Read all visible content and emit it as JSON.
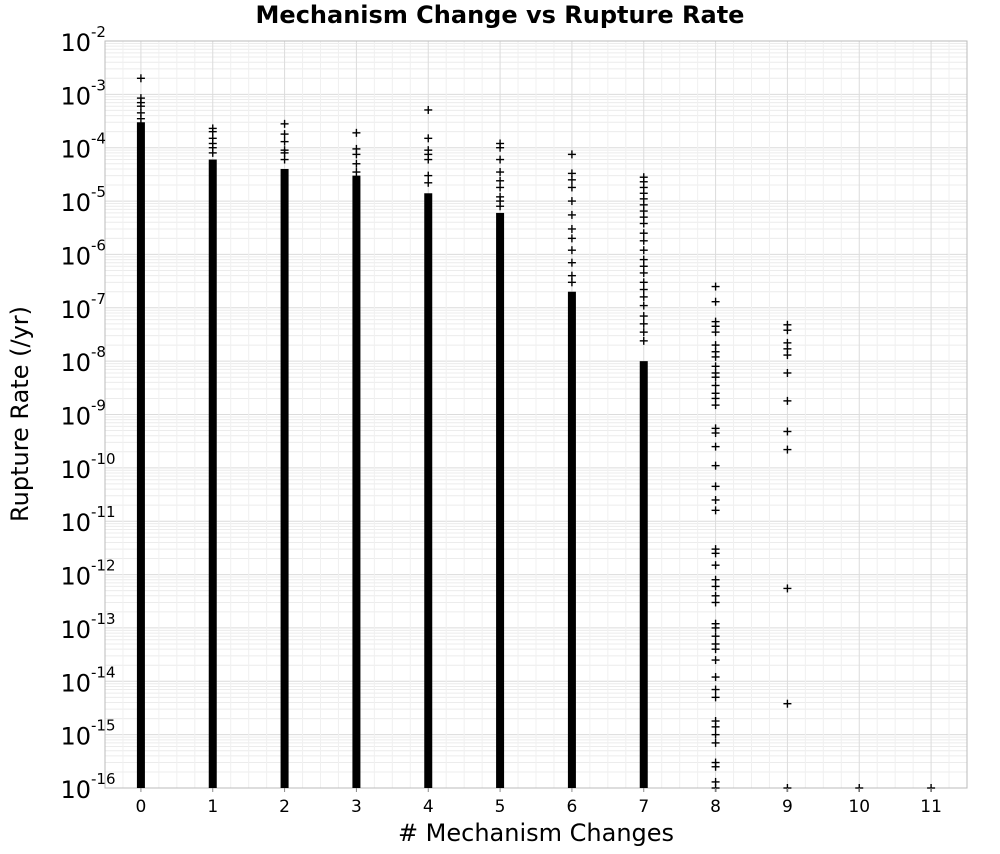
{
  "chart_data": {
    "type": "scatter",
    "title": "Mechanism Change vs Rupture Rate",
    "xlabel": "# Mechanism Changes",
    "ylabel": "Rupture Rate (/yr)",
    "x_ticks": [
      0,
      1,
      2,
      3,
      4,
      5,
      6,
      7,
      8,
      9,
      10,
      11
    ],
    "xlim": [
      -0.5,
      11.5
    ],
    "y_scale": "log",
    "ylim": [
      1e-16,
      0.01
    ],
    "y_tick_exponents": [
      -2,
      -3,
      -4,
      -5,
      -6,
      -7,
      -8,
      -9,
      -10,
      -11,
      -12,
      -13,
      -14,
      -15,
      -16
    ],
    "y_tick_base": "10",
    "grid": true,
    "marker": "+",
    "marker_color": "#000000",
    "columns": [
      {
        "x": 0,
        "dense_range": [
          1e-16,
          0.0003
        ],
        "points": [
          0.002,
          0.00085,
          0.0007,
          0.0006,
          0.00045,
          0.00035
        ]
      },
      {
        "x": 1,
        "dense_range": [
          1e-16,
          6e-05
        ],
        "points": [
          0.00023,
          0.0002,
          0.00015,
          0.00012,
          0.0001,
          8e-05
        ]
      },
      {
        "x": 2,
        "dense_range": [
          1e-16,
          4e-05
        ],
        "points": [
          0.00028,
          0.00018,
          0.00013,
          9e-05,
          8e-05,
          6e-05
        ]
      },
      {
        "x": 3,
        "dense_range": [
          1e-16,
          3e-05
        ],
        "points": [
          0.00019,
          9.5e-05,
          7.5e-05,
          5e-05,
          3.5e-05
        ]
      },
      {
        "x": 4,
        "dense_range": [
          1e-16,
          1.4e-05
        ],
        "points": [
          0.00051,
          0.00015,
          9e-05,
          7.5e-05,
          6e-05,
          3e-05,
          2.2e-05
        ]
      },
      {
        "x": 5,
        "dense_range": [
          1e-16,
          6e-06
        ],
        "points": [
          0.00012,
          0.0001,
          6e-05,
          3.5e-05,
          2.4e-05,
          1.8e-05,
          1.2e-05,
          1e-05,
          8e-06
        ]
      },
      {
        "x": 6,
        "dense_range": [
          1e-16,
          2e-07
        ],
        "points": [
          7.5e-05,
          3.3e-05,
          2.5e-05,
          1.8e-05,
          1e-05,
          5.5e-06,
          3e-06,
          2e-06,
          1.2e-06,
          7e-07,
          4e-07,
          3e-07
        ]
      },
      {
        "x": 7,
        "dense_range": [
          1e-16,
          1e-08
        ],
        "points": [
          2.8e-05,
          2.3e-05,
          1.8e-05,
          1.4e-05,
          1.1e-05,
          8.5e-06,
          6.5e-06,
          5e-06,
          3.8e-06,
          2.5e-06,
          1.8e-06,
          1.2e-06,
          8e-07,
          6e-07,
          4.5e-07,
          3e-07,
          2.2e-07,
          1.6e-07,
          1.1e-07,
          7e-08,
          5e-08,
          3.5e-08,
          2.4e-08
        ]
      },
      {
        "x": 8,
        "dense_range": null,
        "points": [
          2.5e-07,
          1.3e-07,
          5.5e-08,
          4.5e-08,
          3.5e-08,
          2e-08,
          1.5e-08,
          1.2e-08,
          8e-09,
          6e-09,
          5e-09,
          3.5e-09,
          2.5e-09,
          2e-09,
          1.5e-09,
          5.5e-10,
          4.5e-10,
          2.5e-10,
          1.1e-10,
          4.5e-11,
          2.5e-11,
          1.6e-11,
          3e-12,
          2.5e-12,
          1.5e-12,
          8e-13,
          6e-13,
          3e-13,
          4e-13,
          1.2e-13,
          1e-13,
          7e-14,
          5e-14,
          4e-14,
          2.5e-14,
          1.2e-14,
          7e-15,
          5e-15,
          1.8e-15,
          1.4e-15,
          1e-15,
          7e-16,
          3e-16,
          2.5e-16,
          1.3e-16,
          1e-16
        ]
      },
      {
        "x": 9,
        "dense_range": null,
        "points": [
          4.8e-08,
          3.8e-08,
          2.2e-08,
          1.7e-08,
          1.3e-08,
          6e-09,
          1.8e-09,
          4.8e-10,
          2.2e-10,
          5.5e-13,
          3.8e-15,
          1e-16
        ]
      },
      {
        "x": 10,
        "dense_range": null,
        "points": [
          1e-16
        ]
      },
      {
        "x": 11,
        "dense_range": null,
        "points": [
          1e-16
        ]
      }
    ]
  }
}
